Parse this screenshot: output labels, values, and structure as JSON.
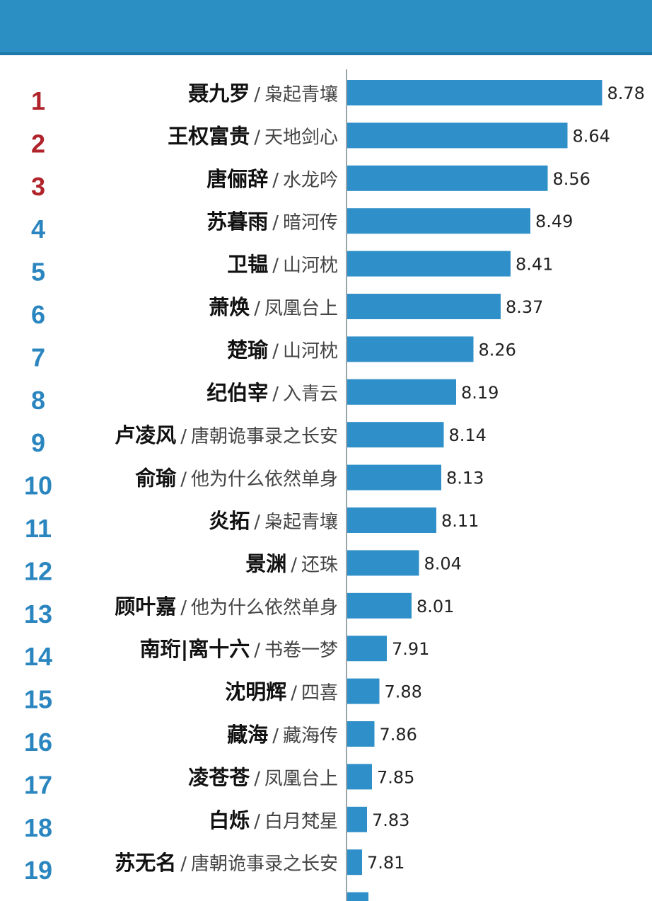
{
  "header": {
    "title": ""
  },
  "colors": {
    "bar": "#2f8fc8",
    "top_rank": "#b0232a",
    "rank": "#2b86c0"
  },
  "chart_data": {
    "type": "bar",
    "orientation": "horizontal",
    "categories": [
      {
        "rank": "1",
        "name": "聂九罗",
        "drama": "枭起青壤"
      },
      {
        "rank": "2",
        "name": "王权富贵",
        "drama": "天地剑心"
      },
      {
        "rank": "3",
        "name": "唐俪辞",
        "drama": "水龙吟"
      },
      {
        "rank": "4",
        "name": "苏暮雨",
        "drama": "暗河传"
      },
      {
        "rank": "5",
        "name": "卫韫",
        "drama": "山河枕"
      },
      {
        "rank": "6",
        "name": "萧焕",
        "drama": "凤凰台上"
      },
      {
        "rank": "7",
        "name": "楚瑜",
        "drama": "山河枕"
      },
      {
        "rank": "8",
        "name": "纪伯宰",
        "drama": "入青云"
      },
      {
        "rank": "9",
        "name": "卢凌风",
        "drama": "唐朝诡事录之长安"
      },
      {
        "rank": "10",
        "name": "俞瑜",
        "drama": "他为什么依然单身"
      },
      {
        "rank": "11",
        "name": "炎拓",
        "drama": "枭起青壤"
      },
      {
        "rank": "12",
        "name": "景渊",
        "drama": "还珠"
      },
      {
        "rank": "13",
        "name": "顾叶嘉",
        "drama": "他为什么依然单身"
      },
      {
        "rank": "14",
        "name": "南珩|离十六",
        "drama": "书卷一梦"
      },
      {
        "rank": "15",
        "name": "沈明辉",
        "drama": "四喜"
      },
      {
        "rank": "16",
        "name": "藏海",
        "drama": "藏海传"
      },
      {
        "rank": "17",
        "name": "凌苍苍",
        "drama": "凤凰台上"
      },
      {
        "rank": "18",
        "name": "白烁",
        "drama": "白月梵星"
      },
      {
        "rank": "19",
        "name": "苏无名",
        "drama": "唐朝诡事录之长安"
      }
    ],
    "separator": "/",
    "values": [
      8.78,
      8.64,
      8.56,
      8.49,
      8.41,
      8.37,
      8.26,
      8.19,
      8.14,
      8.13,
      8.11,
      8.04,
      8.01,
      7.91,
      7.88,
      7.86,
      7.85,
      7.83,
      7.81
    ],
    "value_labels": [
      "8.78",
      "8.64",
      "8.56",
      "8.49",
      "8.41",
      "8.37",
      "8.26",
      "8.19",
      "8.14",
      "8.13",
      "8.11",
      "8.04",
      "8.01",
      "7.91",
      "7.88",
      "7.86",
      "7.85",
      "7.83",
      "7.81"
    ],
    "xlim": [
      7.75,
      8.81
    ],
    "grid": false,
    "legend": "none"
  }
}
